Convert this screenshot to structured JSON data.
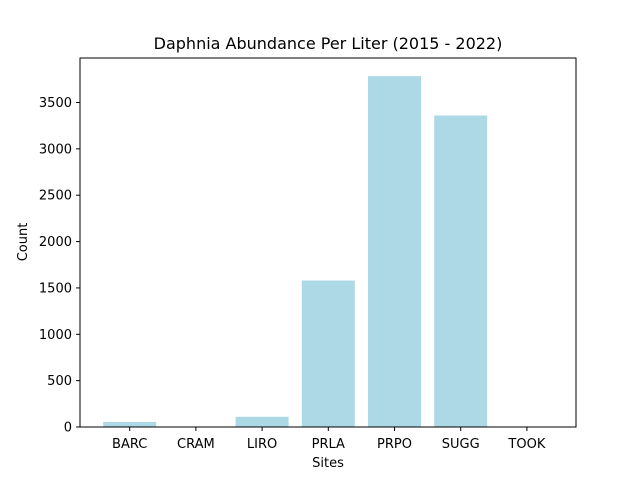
{
  "chart_data": {
    "type": "bar",
    "title": "Daphnia Abundance Per Liter (2015 - 2022)",
    "xlabel": "Sites",
    "ylabel": "Count",
    "categories": [
      "BARC",
      "CRAM",
      "LIRO",
      "PRLA",
      "PRPO",
      "SUGG",
      "TOOK"
    ],
    "values": [
      55,
      0,
      110,
      1580,
      3785,
      3360,
      0
    ],
    "ylim": [
      0,
      3980
    ],
    "yticks": [
      0,
      500,
      1000,
      1500,
      2000,
      2500,
      3000,
      3500
    ],
    "bar_color": "#add8e6",
    "grid": false,
    "legend": "none"
  }
}
